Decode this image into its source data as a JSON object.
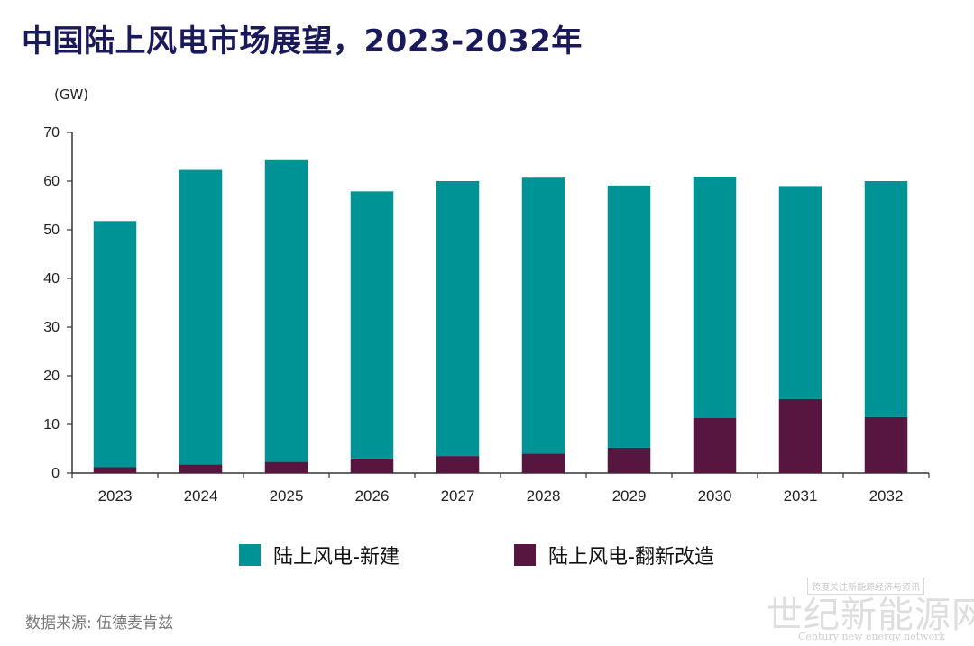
{
  "page": {
    "title": "中国陆上风电市场展望，2023-2032年",
    "source": "数据来源: 伍德麦肯兹",
    "watermark": {
      "box_text": "跨度关注新能源经济与资讯",
      "main_text": "世纪新能源网",
      "sub_text": "Century new energy network"
    }
  },
  "chart_data": {
    "type": "bar",
    "stacked": true,
    "title": "中国陆上风电市场展望，2023-2032年",
    "ylabel": "(GW)",
    "xlabel": "",
    "ylim": [
      0,
      70
    ],
    "yticks": [
      0,
      10,
      20,
      30,
      40,
      50,
      60,
      70
    ],
    "grid": false,
    "legend_position": "bottom",
    "categories": [
      "2023",
      "2024",
      "2025",
      "2026",
      "2027",
      "2028",
      "2029",
      "2030",
      "2031",
      "2032"
    ],
    "series": [
      {
        "name": "陆上风电-翻新改造",
        "color": "#56163f",
        "values": [
          1.2,
          1.8,
          2.3,
          3.0,
          3.5,
          4.0,
          5.2,
          11.3,
          15.2,
          11.5
        ]
      },
      {
        "name": "陆上风电-新建",
        "color": "#009396",
        "values": [
          50.6,
          60.5,
          62.0,
          54.9,
          56.5,
          56.7,
          53.9,
          49.6,
          43.8,
          48.5
        ]
      }
    ]
  }
}
